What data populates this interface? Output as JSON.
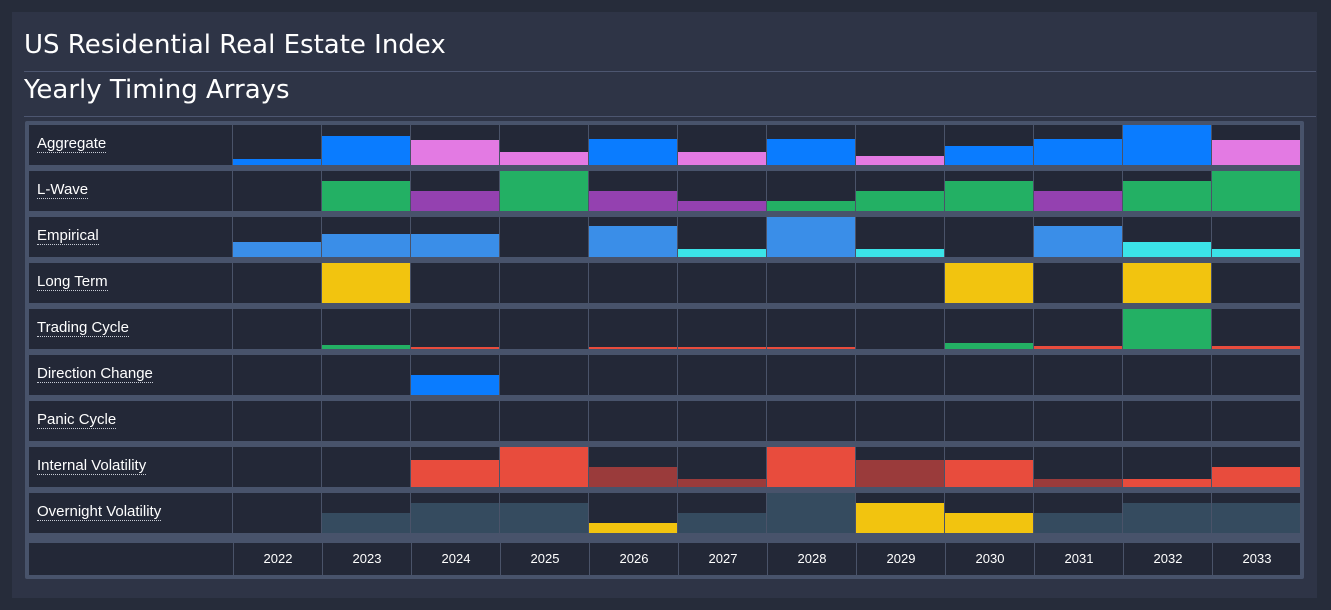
{
  "header": {
    "title": "US Residential Real Estate Index",
    "subtitle": "Yearly Timing Arrays"
  },
  "chart_data": {
    "type": "heatmap",
    "categories": [
      "2022",
      "2023",
      "2024",
      "2025",
      "2026",
      "2027",
      "2028",
      "2029",
      "2030",
      "2031",
      "2032",
      "2033"
    ],
    "value_scale": [
      0,
      4
    ],
    "rows": [
      {
        "name": "Aggregate",
        "values": [
          0.6,
          2.9,
          2.5,
          1.3,
          2.6,
          1.3,
          2.6,
          0.9,
          1.9,
          2.6,
          4,
          2.5
        ],
        "colors": [
          "#0a7cff",
          "#0a7cff",
          "#e37ae3",
          "#e37ae3",
          "#0a7cff",
          "#e37ae3",
          "#0a7cff",
          "#e37ae3",
          "#0a7cff",
          "#0a7cff",
          "#0a7cff",
          "#e37ae3"
        ]
      },
      {
        "name": "L-Wave",
        "values": [
          0,
          3,
          2,
          4,
          2,
          1,
          1,
          2,
          3,
          2,
          3,
          4
        ],
        "colors": [
          "#23b064",
          "#23b064",
          "#9441b0",
          "#23b064",
          "#9441b0",
          "#9441b0",
          "#23b064",
          "#23b064",
          "#23b064",
          "#9441b0",
          "#23b064",
          "#23b064"
        ]
      },
      {
        "name": "Empirical",
        "values": [
          1.5,
          2.3,
          2.3,
          0,
          3.1,
          0.8,
          4,
          0.8,
          0,
          3.1,
          1.5,
          0.8
        ],
        "colors": [
          "#3a8ee8",
          "#3a8ee8",
          "#3a8ee8",
          "#3a8ee8",
          "#3a8ee8",
          "#3be3e8",
          "#3a8ee8",
          "#3be3e8",
          "#3a8ee8",
          "#3a8ee8",
          "#3be3e8",
          "#3be3e8"
        ]
      },
      {
        "name": "Long Term",
        "values": [
          0,
          4,
          0,
          0,
          0,
          0,
          0,
          0,
          4,
          0,
          4,
          0
        ],
        "colors": [
          "#f2c40f",
          "#f2c40f",
          "#f2c40f",
          "#f2c40f",
          "#f2c40f",
          "#f2c40f",
          "#f2c40f",
          "#f2c40f",
          "#f2c40f",
          "#f2c40f",
          "#f2c40f",
          "#f2c40f"
        ]
      },
      {
        "name": "Trading Cycle",
        "values": [
          0,
          0.4,
          0.2,
          0,
          0.2,
          0.2,
          0.2,
          0,
          0.6,
          0.3,
          4,
          0.3
        ],
        "colors": [
          "#23b064",
          "#23b064",
          "#e84c3d",
          "#e84c3d",
          "#e84c3d",
          "#e84c3d",
          "#e84c3d",
          "#e84c3d",
          "#23b064",
          "#e84c3d",
          "#23b064",
          "#e84c3d"
        ]
      },
      {
        "name": "Direction Change",
        "values": [
          0,
          0,
          2,
          0,
          0,
          0,
          0,
          0,
          0,
          0,
          0,
          0
        ],
        "colors": [
          "#0a7cff",
          "#0a7cff",
          "#0a7cff",
          "#0a7cff",
          "#0a7cff",
          "#0a7cff",
          "#0a7cff",
          "#0a7cff",
          "#0a7cff",
          "#0a7cff",
          "#0a7cff",
          "#0a7cff"
        ]
      },
      {
        "name": "Panic Cycle",
        "values": [
          0,
          0,
          0,
          0,
          0,
          0,
          0,
          0,
          0,
          0,
          0,
          0
        ],
        "colors": [
          "#e84c3d",
          "#e84c3d",
          "#e84c3d",
          "#e84c3d",
          "#e84c3d",
          "#e84c3d",
          "#e84c3d",
          "#e84c3d",
          "#e84c3d",
          "#e84c3d",
          "#e84c3d",
          "#e84c3d"
        ]
      },
      {
        "name": "Internal Volatility",
        "values": [
          0,
          0,
          2.7,
          4,
          2,
          0.8,
          4,
          2.7,
          2.7,
          0.8,
          0.8,
          2
        ],
        "colors": [
          "#e84c3d",
          "#e84c3d",
          "#e84c3d",
          "#e84c3d",
          "#9a3b3b",
          "#9a3b3b",
          "#e84c3d",
          "#9a3b3b",
          "#e84c3d",
          "#9a3b3b",
          "#e84c3d",
          "#e84c3d"
        ]
      },
      {
        "name": "Overnight Volatility",
        "values": [
          0,
          2,
          3,
          3,
          1,
          2,
          4,
          3,
          2,
          2,
          3,
          3
        ],
        "colors": [
          "#354b5f",
          "#354b5f",
          "#354b5f",
          "#354b5f",
          "#f2c40f",
          "#354b5f",
          "#354b5f",
          "#f2c40f",
          "#f2c40f",
          "#354b5f",
          "#354b5f",
          "#354b5f"
        ]
      }
    ]
  }
}
